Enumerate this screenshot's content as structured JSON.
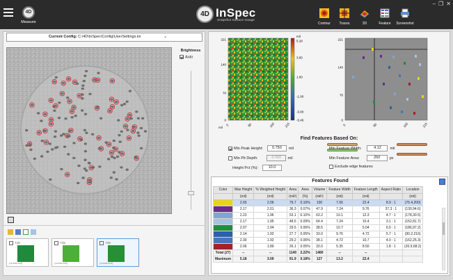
{
  "app": {
    "name": "InSpec",
    "subtitle": "Snapshot Surface Gauge",
    "logo_text": "4D",
    "measure_label": "Measure",
    "measure_badge": "4D"
  },
  "toolbar": [
    {
      "label": "Contour",
      "icon": "contour-icon"
    },
    {
      "label": "Traces",
      "icon": "traces-icon"
    },
    {
      "label": "3D",
      "icon": "3d-icon"
    },
    {
      "label": "Feature",
      "icon": "feature-icon"
    },
    {
      "label": "Screenshot",
      "icon": "screenshot-icon"
    }
  ],
  "window_controls": {
    "minimize": "–",
    "restore": "❐",
    "close": "✕"
  },
  "config": {
    "label": "Current Config:",
    "value": "C:\\4D\\InSpec\\Config\\UserSettings.ini"
  },
  "brightness": {
    "title": "Brightness",
    "auto_label": "Auto",
    "auto_checked": true
  },
  "thumbnails": [
    {
      "title": "Title",
      "caption": "(unnamed)",
      "color": "#1f8a3c"
    },
    {
      "title": "Title",
      "caption": "(unnamed)",
      "color": "#4eae3a"
    },
    {
      "title": "Title",
      "caption": "(unnamed)",
      "color": "#278f35"
    }
  ],
  "contour_plot": {
    "units": "mil",
    "y_ticks": [
      "221",
      "140",
      "70",
      "0"
    ],
    "x_ticks": [
      "0",
      "80",
      "160",
      "215"
    ],
    "x_unit": "mil",
    "colorbar_ticks": [
      "5.18",
      "3.00",
      "1.00",
      "-1.00",
      "-3.00",
      "-5.46"
    ]
  },
  "feature_plot": {
    "y_ticks": [
      "221",
      "140",
      "70",
      "0"
    ],
    "x_ticks": [
      "0",
      "80",
      "160",
      "215"
    ]
  },
  "find_features": {
    "title": "Find Features Based On:",
    "min_peak_height": {
      "label": "Min Peak Height:",
      "value": "0.750",
      "unit": "mil",
      "checked": true
    },
    "min_pit_depth": {
      "label": "Min Pit Depth:",
      "value": "-0.400",
      "unit": "mil",
      "checked": false
    },
    "height_pct": {
      "label": "Height Pct (%):",
      "value": "10.0"
    },
    "min_feature_width": {
      "label": "Min Feature Width:",
      "value": "4.12",
      "unit": "mil"
    },
    "min_feature_area": {
      "label": "Min Feature Area:",
      "value": "250",
      "unit": "px"
    },
    "exclude_edge": {
      "label": "Exclude edge features",
      "checked": false
    }
  },
  "features_found": {
    "title": "Features Found",
    "headers": [
      [
        "Color",
        ""
      ],
      [
        "Max Height",
        "(mil)"
      ],
      [
        "% Weighted Height",
        "(mil)"
      ],
      [
        "Area",
        "(mil²)"
      ],
      [
        "Area",
        "(%)"
      ],
      [
        "Volume",
        "(mil³)"
      ],
      [
        "Feature Width",
        "(mil)"
      ],
      [
        "Feature Length",
        "(mil)"
      ],
      [
        "Aspect Ratio",
        ""
      ],
      [
        "Location",
        "(mil)"
      ]
    ],
    "rows": [
      {
        "color": "#e8d51a",
        "cells": [
          "2.65",
          "2.06",
          "79.7",
          "0.16%",
          "100",
          "7.56",
          "22.4",
          "8.9 : 1",
          "(76.4,200)"
        ],
        "highlight": true
      },
      {
        "color": "#6b2c8f",
        "cells": [
          "2.17",
          "2.01",
          "36.3",
          "0.07%",
          "47.9",
          "7.24",
          "9.76",
          "37.3 : 1",
          "(130,94.6)"
        ],
        "highlight": false
      },
      {
        "color": "#7fa6cf",
        "cells": [
          "2.23",
          "1.96",
          "53.1",
          "0.10%",
          "63.2",
          "10.1",
          "12.3",
          "4.7 : 1",
          "(178,30.5)"
        ],
        "highlight": false
      },
      {
        "color": "#a9c4da",
        "cells": [
          "2.17",
          "1.95",
          "48.6",
          "0.09%",
          "64.4",
          "7.24",
          "10.4",
          "3.1 : 1",
          "(152,81.7)"
        ],
        "highlight": false
      },
      {
        "color": "#1e8f3c",
        "cells": [
          "2.07",
          "1.94",
          "29.5",
          "0.06%",
          "38.5",
          "10.7",
          "5.04",
          "6.5 : 1",
          "(186,97.2)"
        ],
        "highlight": false
      },
      {
        "color": "#2f5fa8",
        "cells": [
          "2.14",
          "1.92",
          "27.7",
          "0.05%",
          "33.0",
          "9.76",
          "4.72",
          "5.7 : 1",
          "(90.2,216)"
        ],
        "highlight": false
      },
      {
        "color": "#4a73b8",
        "cells": [
          "2.30",
          "1.92",
          "29.2",
          "0.06%",
          "38.1",
          "4.72",
          "10.7",
          "4.0 : 1",
          "(162,25.3)"
        ],
        "highlight": false
      },
      {
        "color": "#a0222a",
        "cells": [
          "2.06",
          "1.89",
          "26.1",
          "0.05%",
          "33.0",
          "5.35",
          "8.50",
          "1.8 : 1",
          "(20.9,68.2)"
        ],
        "highlight": false
      }
    ],
    "total": {
      "label": "Total (27)",
      "cells": [
        "--",
        "--",
        "1140",
        "2.22%",
        "1480",
        "--",
        "--",
        "",
        ""
      ]
    },
    "maximum": {
      "label": "Maximum",
      "cells": [
        "5.18",
        "3.09",
        "91.9",
        "0.18%",
        "127",
        "13.2",
        "22.4",
        "",
        ""
      ]
    }
  }
}
